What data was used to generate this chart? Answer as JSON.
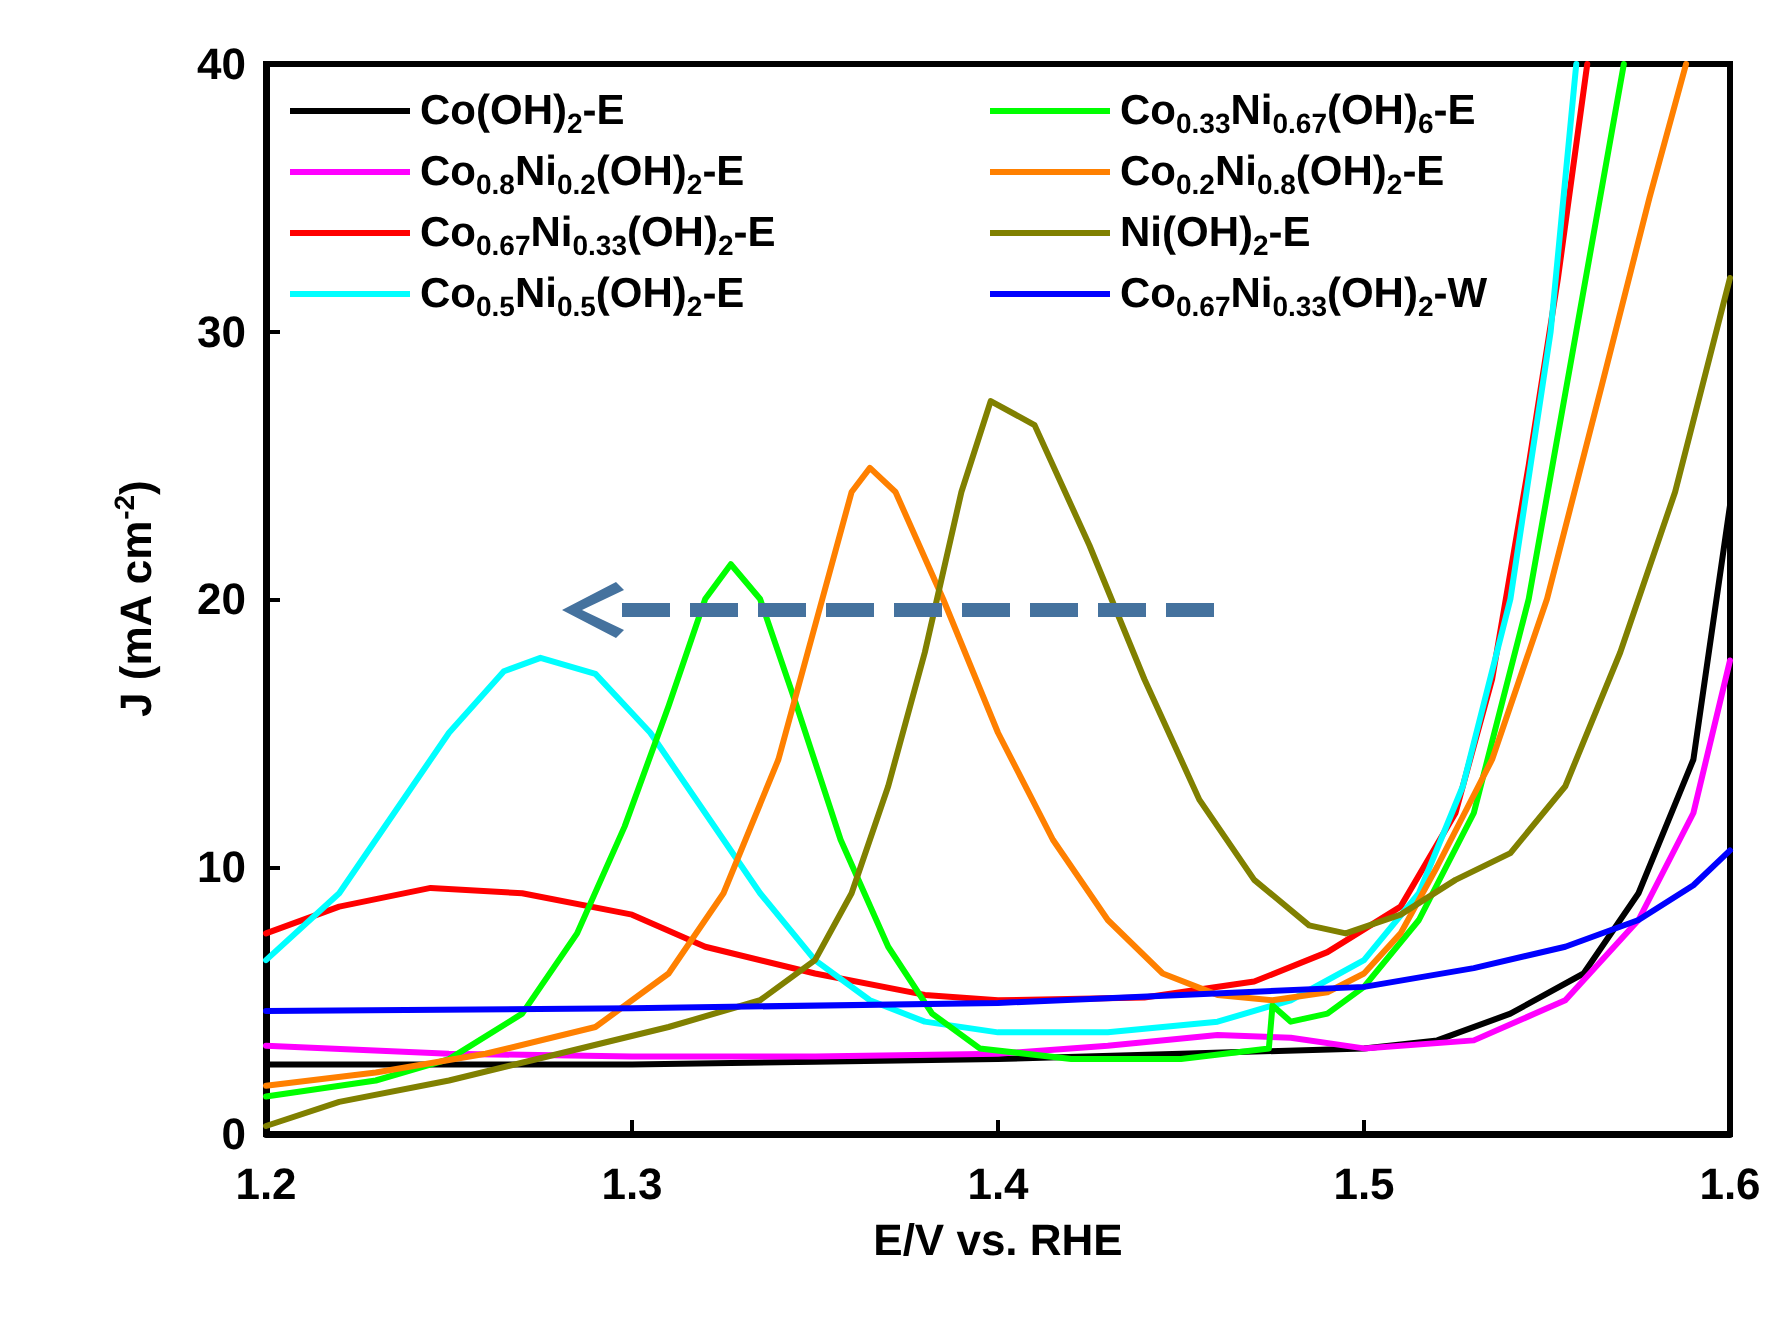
{
  "chart_data": {
    "type": "line",
    "xlabel": "E/V vs. RHE",
    "ylabel": "J (mA cm$^{-2}$)",
    "xlim": [
      1.2,
      1.6
    ],
    "xticks": [
      1.2,
      1.3,
      1.4,
      1.5,
      1.6
    ],
    "ylim": [
      0,
      40
    ],
    "yticks": [
      0,
      10,
      20,
      30,
      40
    ],
    "grid": false,
    "legend": "top",
    "marker": "none",
    "line_style": "solid",
    "series": [
      {
        "name": "Co(OH)$_{2}$-E",
        "color": "#000000",
        "x": [
          1.2,
          1.25,
          1.3,
          1.35,
          1.4,
          1.45,
          1.5,
          1.52,
          1.54,
          1.56,
          1.575,
          1.59,
          1.6
        ],
        "values": [
          2.6,
          2.6,
          2.6,
          2.7,
          2.8,
          3.0,
          3.2,
          3.5,
          4.5,
          6,
          9,
          14,
          23.5
        ]
      },
      {
        "name": "Co$_{0.8}$Ni$_{0.2}$(OH)$_{2}$-E",
        "color": "#ff00ff",
        "x": [
          1.2,
          1.25,
          1.3,
          1.35,
          1.4,
          1.43,
          1.46,
          1.48,
          1.5,
          1.53,
          1.555,
          1.575,
          1.59,
          1.6
        ],
        "values": [
          3.3,
          3.0,
          2.9,
          2.9,
          3.0,
          3.3,
          3.7,
          3.6,
          3.2,
          3.5,
          5,
          8,
          12,
          17.7
        ]
      },
      {
        "name": "Co$_{0.67}$Ni$_{0.33}$(OH)$_{2}$-E",
        "color": "#ff0000",
        "x": [
          1.2,
          1.22,
          1.245,
          1.27,
          1.3,
          1.32,
          1.35,
          1.38,
          1.4,
          1.44,
          1.47,
          1.49,
          1.51,
          1.525,
          1.535,
          1.545,
          1.553,
          1.561
        ],
        "values": [
          7.5,
          8.5,
          9.2,
          9.0,
          8.2,
          7,
          6,
          5.2,
          5.0,
          5.1,
          5.7,
          6.8,
          8.5,
          12,
          17,
          25,
          32,
          40
        ]
      },
      {
        "name": "Co$_{0.5}$Ni$_{0.5}$(OH)$_{2}$-E",
        "color": "#00ffff",
        "x": [
          1.2,
          1.22,
          1.235,
          1.25,
          1.265,
          1.275,
          1.29,
          1.305,
          1.32,
          1.335,
          1.35,
          1.365,
          1.38,
          1.4,
          1.43,
          1.46,
          1.48,
          1.5,
          1.515,
          1.527,
          1.54,
          1.551,
          1.558
        ],
        "values": [
          6.5,
          9,
          12,
          15,
          17.3,
          17.8,
          17.2,
          15,
          12,
          9,
          6.5,
          5,
          4.2,
          3.8,
          3.8,
          4.2,
          5,
          6.5,
          9,
          13,
          20,
          30,
          40
        ]
      },
      {
        "name": "Co$_{0.33}$Ni$_{0.67}$(OH)$_{6}$-E",
        "color": "#00ff00",
        "x": [
          1.2,
          1.23,
          1.25,
          1.27,
          1.285,
          1.298,
          1.31,
          1.32,
          1.327,
          1.335,
          1.345,
          1.357,
          1.37,
          1.382,
          1.395,
          1.42,
          1.45,
          1.474,
          1.475,
          1.48,
          1.49,
          1.5,
          1.515,
          1.53,
          1.545,
          1.558,
          1.571
        ],
        "values": [
          1.4,
          2.0,
          2.8,
          4.5,
          7.5,
          11.5,
          16,
          20,
          21.3,
          20,
          16,
          11,
          7,
          4.5,
          3.2,
          2.8,
          2.8,
          3.2,
          4.8,
          4.2,
          4.5,
          5.5,
          8,
          12,
          20,
          30,
          40
        ]
      },
      {
        "name": "Co$_{0.2}$Ni$_{0.8}$(OH)$_{2}$-E",
        "color": "#ff8000",
        "x": [
          1.2,
          1.23,
          1.26,
          1.29,
          1.31,
          1.325,
          1.34,
          1.352,
          1.36,
          1.365,
          1.372,
          1.385,
          1.4,
          1.415,
          1.43,
          1.445,
          1.46,
          1.475,
          1.49,
          1.5,
          1.51,
          1.52,
          1.535,
          1.55,
          1.565,
          1.578,
          1.588
        ],
        "values": [
          1.8,
          2.3,
          3,
          4,
          6,
          9,
          14,
          20,
          24,
          24.9,
          24,
          20,
          15,
          11,
          8,
          6,
          5.2,
          5.0,
          5.3,
          6,
          7.5,
          10,
          14,
          20,
          28,
          35,
          40
        ]
      },
      {
        "name": "Ni(OH)$_{2}$-E",
        "color": "#808000",
        "x": [
          1.2,
          1.22,
          1.25,
          1.28,
          1.31,
          1.335,
          1.35,
          1.36,
          1.37,
          1.38,
          1.39,
          1.398,
          1.41,
          1.425,
          1.44,
          1.455,
          1.47,
          1.485,
          1.495,
          1.51,
          1.525,
          1.54,
          1.555,
          1.57,
          1.585,
          1.6
        ],
        "values": [
          0.3,
          1.2,
          2.0,
          3.0,
          4,
          5,
          6.5,
          9,
          13,
          18,
          24,
          27.4,
          26.5,
          22,
          17,
          12.5,
          9.5,
          7.8,
          7.5,
          8.2,
          9.5,
          10.5,
          13,
          18,
          24,
          32
        ]
      },
      {
        "name": "Co$_{0.67}$Ni$_{0.33}$(OH)$_{2}$-W",
        "color": "#0000ff",
        "x": [
          1.2,
          1.3,
          1.4,
          1.45,
          1.5,
          1.53,
          1.555,
          1.575,
          1.59,
          1.6
        ],
        "values": [
          4.6,
          4.7,
          4.9,
          5.2,
          5.5,
          6.2,
          7,
          8,
          9.3,
          10.6
        ]
      }
    ]
  }
}
